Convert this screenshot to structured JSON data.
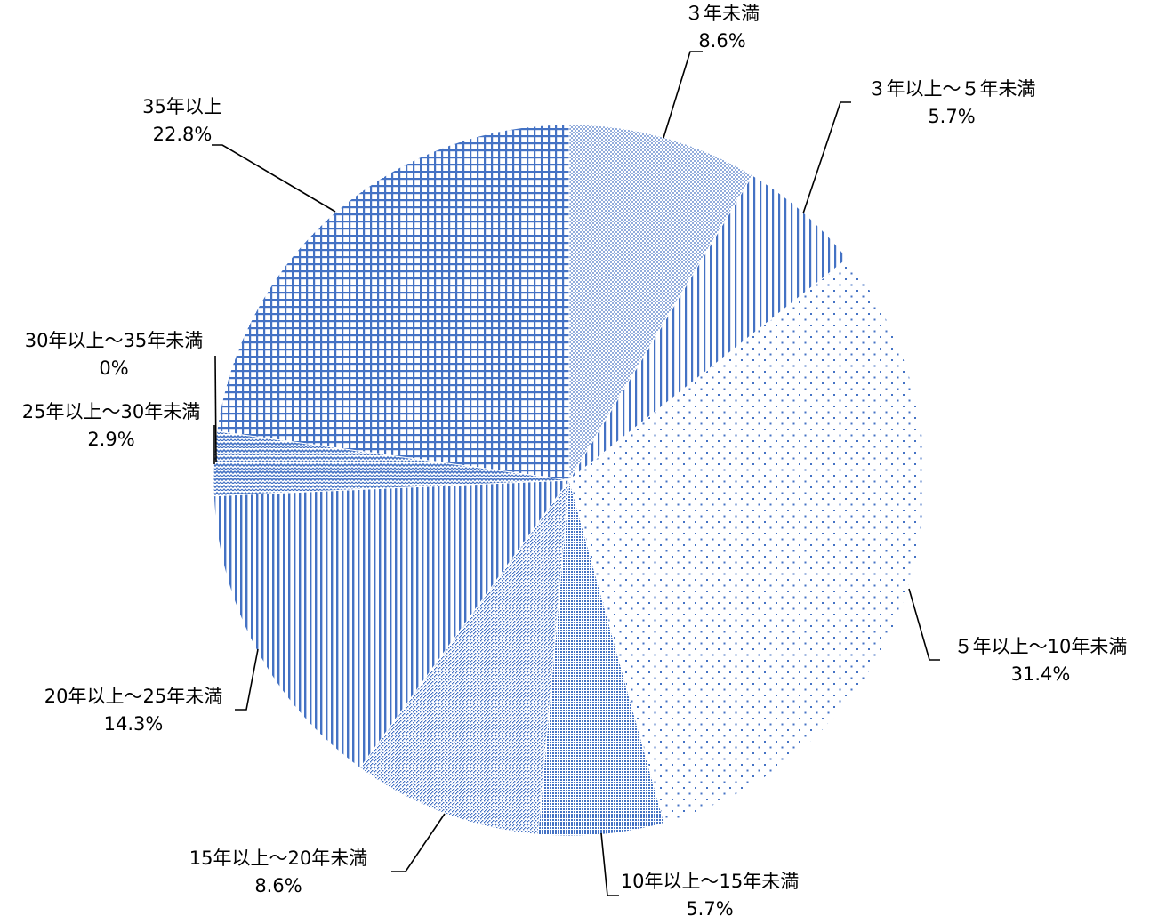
{
  "colors": {
    "accent": "#4472c4",
    "background": "#ffffff",
    "text": "#000000"
  },
  "chart_data": {
    "type": "pie",
    "title": "",
    "start_angle_deg": 0,
    "direction": "clockwise",
    "slices": [
      {
        "label": "３年未満",
        "value": 8.6,
        "value_label": "8.6%",
        "pattern": "fine-dots"
      },
      {
        "label": "３年以上～５年未満",
        "value": 5.7,
        "value_label": "5.7%",
        "pattern": "vertical-lines"
      },
      {
        "label": "５年以上～10年未満",
        "value": 31.4,
        "value_label": "31.4%",
        "pattern": "sparse-dots"
      },
      {
        "label": "10年以上～15年未満",
        "value": 5.7,
        "value_label": "5.7%",
        "pattern": "dense-grid"
      },
      {
        "label": "15年以上～20年未満",
        "value": 8.6,
        "value_label": "8.6%",
        "pattern": "diagonal-dots"
      },
      {
        "label": "20年以上～25年未満",
        "value": 14.3,
        "value_label": "14.3%",
        "pattern": "vertical-lines-dense"
      },
      {
        "label": "25年以上～30年未満",
        "value": 2.9,
        "value_label": "2.9%",
        "pattern": "zigzag"
      },
      {
        "label": "30年以上～35年未満",
        "value": 0,
        "value_label": "0%",
        "pattern": "none"
      },
      {
        "label": "35年以上",
        "value": 22.8,
        "value_label": "22.8%",
        "pattern": "grid"
      }
    ]
  }
}
